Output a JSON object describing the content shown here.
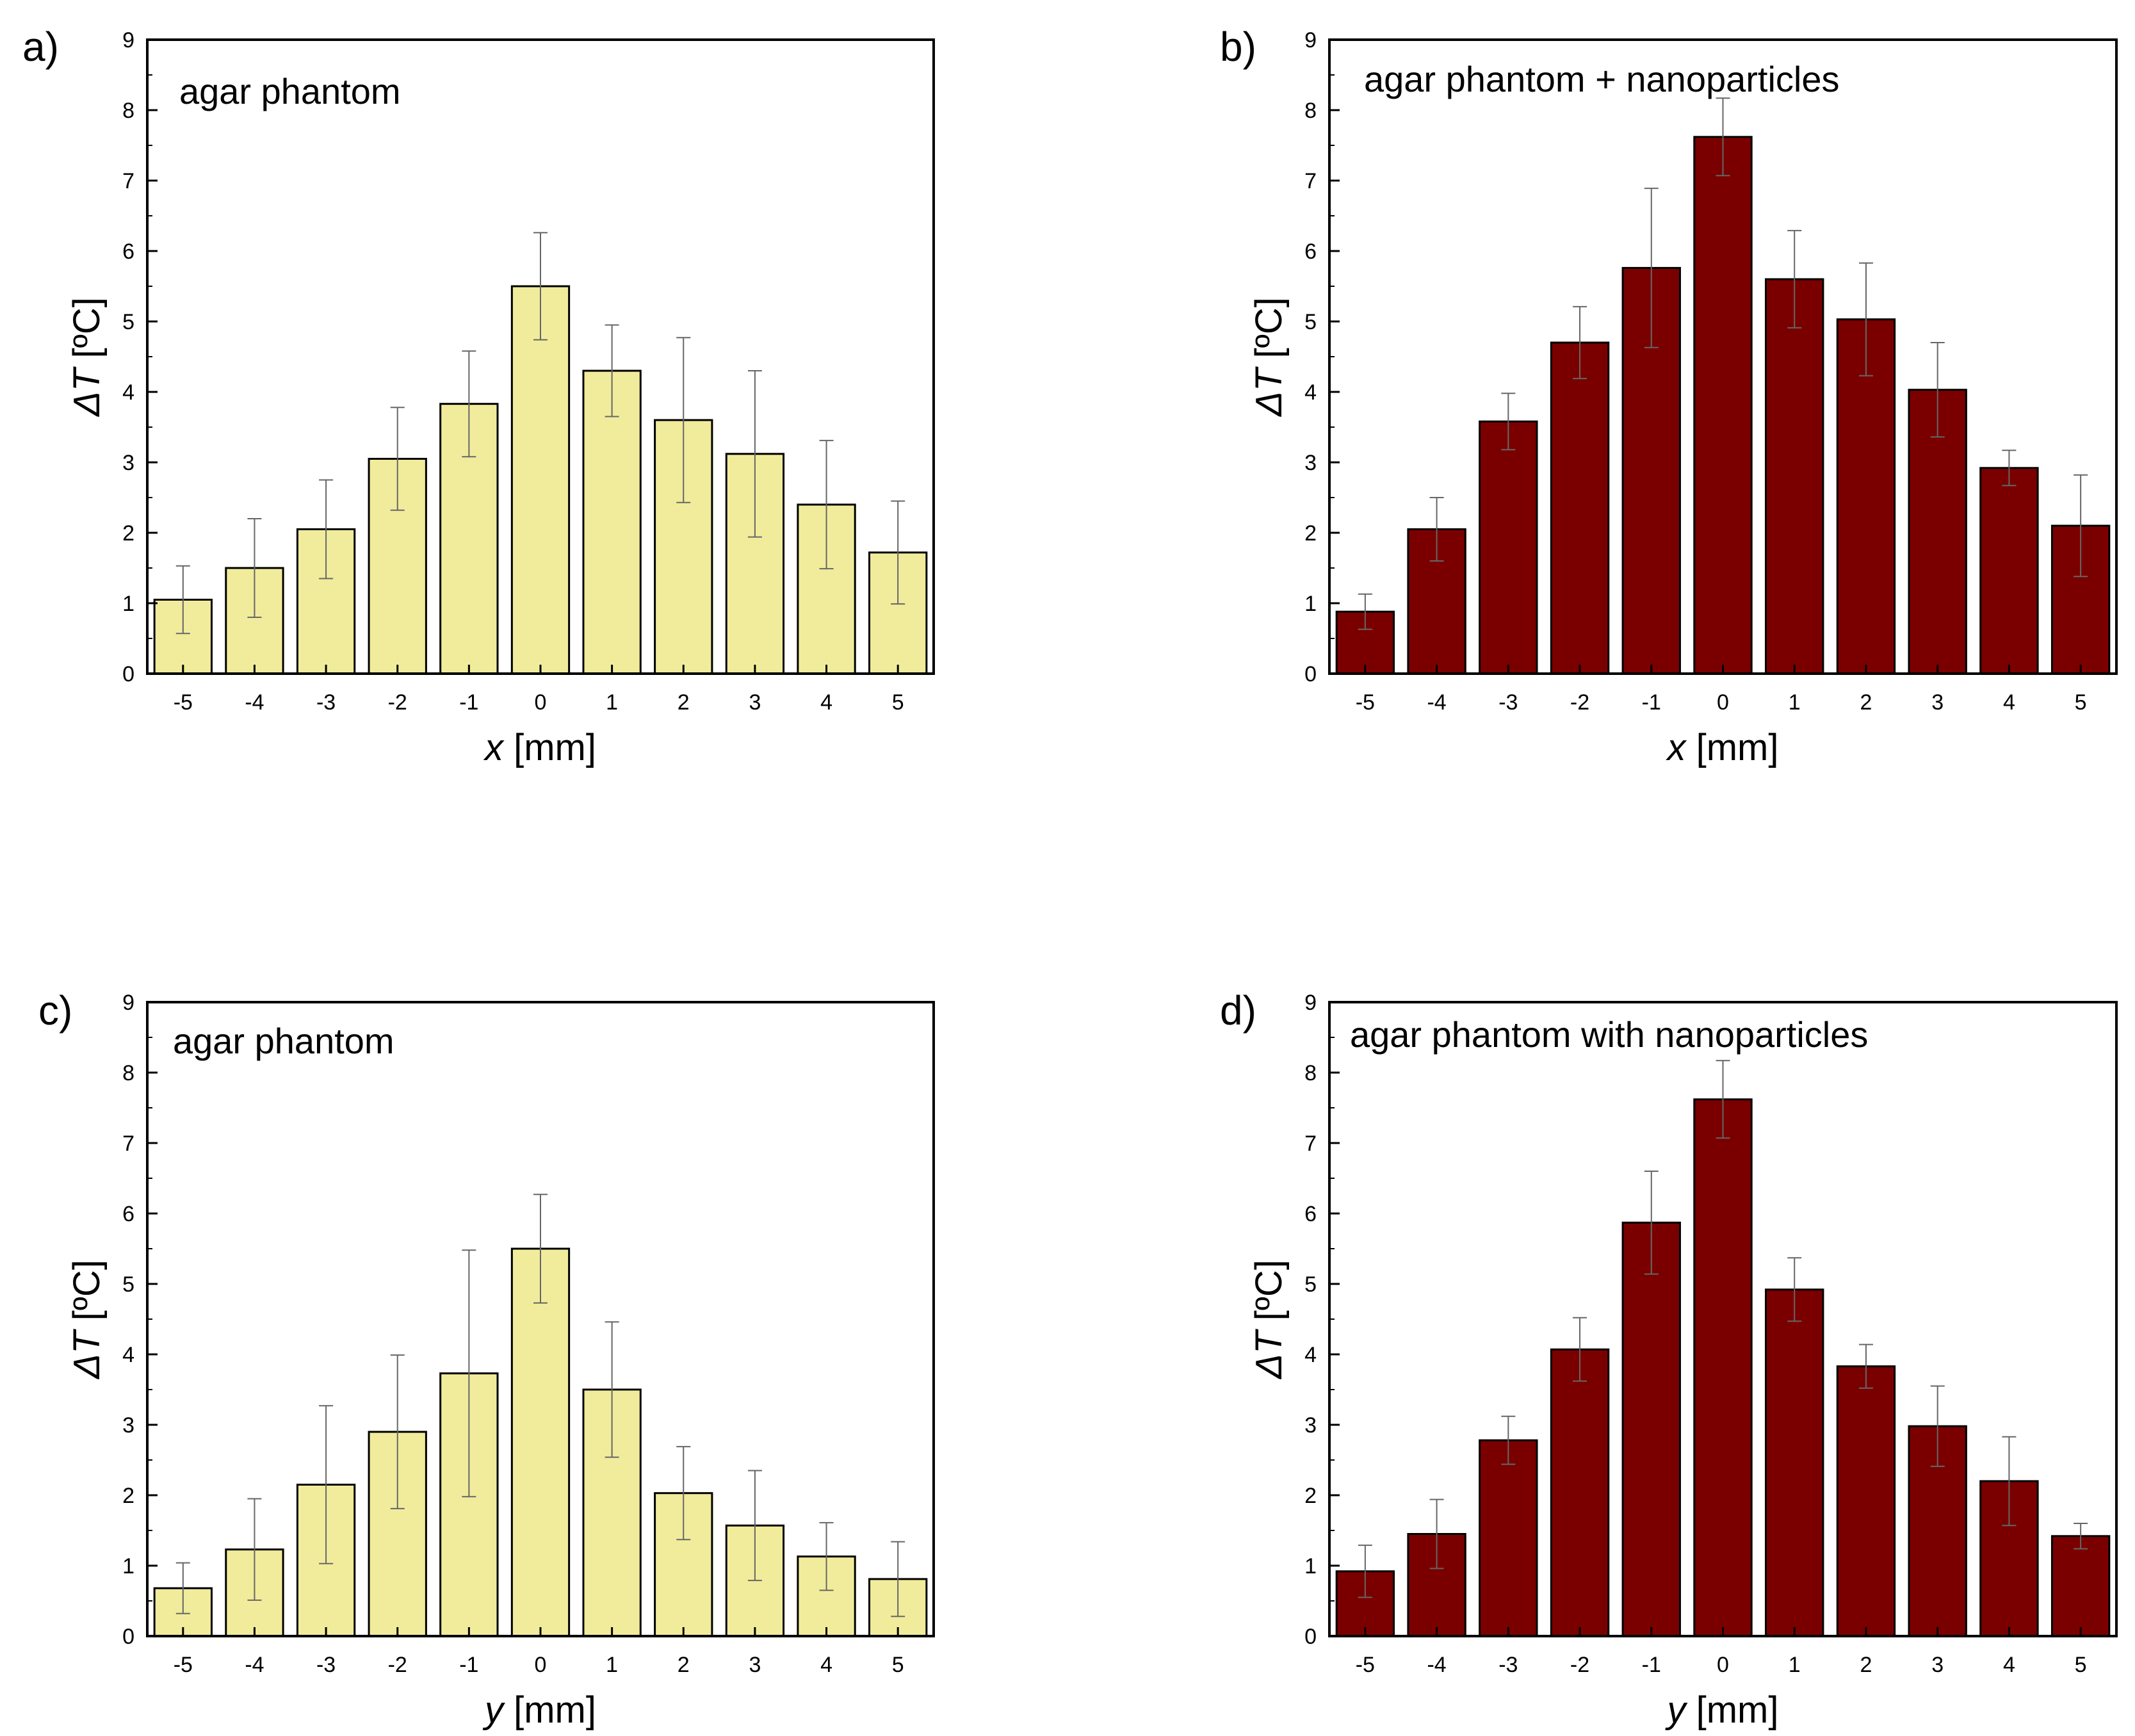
{
  "colors": {
    "light_bar": "#f1ec9c",
    "dark_bar": "#7a0000",
    "error_bar": "#666666"
  },
  "chart_data": [
    {
      "type": "bar",
      "panel_label": "a)",
      "title": "agar phantom",
      "categories": [
        "-5",
        "-4",
        "-3",
        "-2",
        "-1",
        "0",
        "1",
        "2",
        "3",
        "4",
        "5"
      ],
      "values": [
        1.05,
        1.5,
        2.05,
        3.05,
        3.83,
        5.5,
        4.3,
        3.6,
        3.12,
        2.4,
        1.72
      ],
      "errors": [
        0.48,
        0.7,
        0.7,
        0.73,
        0.75,
        0.76,
        0.65,
        1.17,
        1.18,
        0.91,
        0.73
      ],
      "xlabel_var": "x",
      "xlabel_unit": " [mm]",
      "ylabel_var": "ΔT",
      "ylabel_unit": " [ºC]",
      "ylim": [
        0,
        9
      ],
      "yticks": [
        "0",
        "1",
        "2",
        "3",
        "4",
        "5",
        "6",
        "7",
        "8",
        "9"
      ],
      "bar_color": "light"
    },
    {
      "type": "bar",
      "panel_label": "b)",
      "title": "agar phantom + nanoparticles",
      "categories": [
        "-5",
        "-4",
        "-3",
        "-2",
        "-1",
        "0",
        "1",
        "2",
        "3",
        "4",
        "5"
      ],
      "values": [
        0.88,
        2.05,
        3.58,
        4.7,
        5.76,
        7.62,
        5.6,
        5.03,
        4.03,
        2.92,
        2.1
      ],
      "errors": [
        0.25,
        0.45,
        0.4,
        0.51,
        1.13,
        0.55,
        0.69,
        0.8,
        0.67,
        0.25,
        0.72
      ],
      "xlabel_var": "x",
      "xlabel_unit": " [mm]",
      "ylabel_var": "ΔT",
      "ylabel_unit": " [ºC]",
      "ylim": [
        0,
        9
      ],
      "yticks": [
        "0",
        "1",
        "2",
        "3",
        "4",
        "5",
        "6",
        "7",
        "8",
        "9"
      ],
      "bar_color": "dark"
    },
    {
      "type": "bar",
      "panel_label": "c)",
      "title": "agar phantom",
      "categories": [
        "-5",
        "-4",
        "-3",
        "-2",
        "-1",
        "0",
        "1",
        "2",
        "3",
        "4",
        "5"
      ],
      "values": [
        0.68,
        1.23,
        2.15,
        2.9,
        3.73,
        5.5,
        3.5,
        2.03,
        1.57,
        1.13,
        0.81
      ],
      "errors": [
        0.36,
        0.72,
        1.12,
        1.09,
        1.75,
        0.77,
        0.96,
        0.66,
        0.78,
        0.48,
        0.53
      ],
      "xlabel_var": "y",
      "xlabel_unit": " [mm]",
      "ylabel_var": "ΔT",
      "ylabel_unit": " [ºC]",
      "ylim": [
        0,
        9
      ],
      "yticks": [
        "0",
        "1",
        "2",
        "3",
        "4",
        "5",
        "6",
        "7",
        "8",
        "9"
      ],
      "bar_color": "light"
    },
    {
      "type": "bar",
      "panel_label": "d)",
      "title": "agar phantom with nanoparticles",
      "categories": [
        "-5",
        "-4",
        "-3",
        "-2",
        "-1",
        "0",
        "1",
        "2",
        "3",
        "4",
        "5"
      ],
      "values": [
        0.92,
        1.45,
        2.78,
        4.07,
        5.87,
        7.62,
        4.92,
        3.83,
        2.98,
        2.2,
        1.42
      ],
      "errors": [
        0.37,
        0.49,
        0.34,
        0.45,
        0.73,
        0.55,
        0.45,
        0.31,
        0.57,
        0.63,
        0.18
      ],
      "xlabel_var": "y",
      "xlabel_unit": " [mm]",
      "ylabel_var": "ΔT",
      "ylabel_unit": " [ºC]",
      "ylim": [
        0,
        9
      ],
      "yticks": [
        "0",
        "1",
        "2",
        "3",
        "4",
        "5",
        "6",
        "7",
        "8",
        "9"
      ],
      "bar_color": "dark"
    }
  ]
}
